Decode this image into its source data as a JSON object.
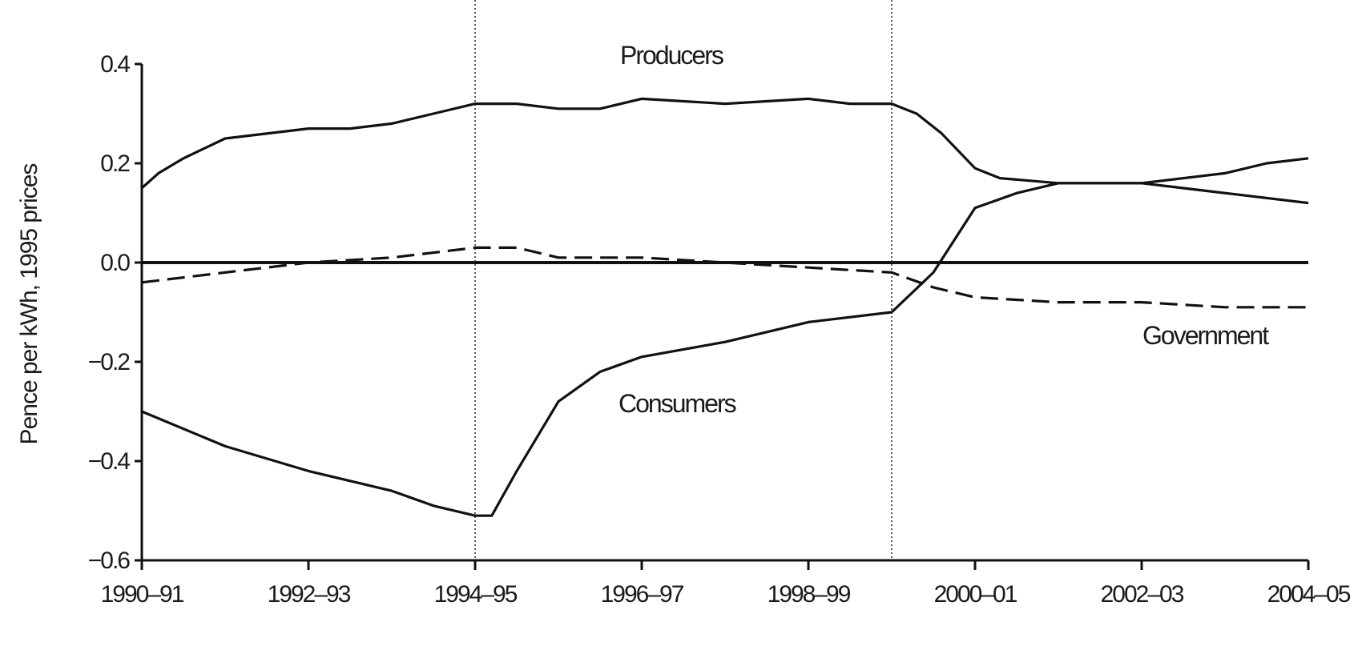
{
  "chart_data": {
    "type": "line",
    "title": "",
    "xlabel": "",
    "ylabel": "Pence per kWh, 1995 prices",
    "x_ticks": [
      "1990–91",
      "1992–93",
      "1994–95",
      "1996–97",
      "1998–99",
      "2000–01",
      "2002–03",
      "2004–05"
    ],
    "y_ticks": [
      "0.4",
      "0.2",
      "0.0",
      "−0.2",
      "−0.4",
      "−0.6"
    ],
    "xlim": [
      1990,
      2004
    ],
    "ylim": [
      -0.6,
      0.4
    ],
    "grid": false,
    "reference_lines": {
      "horizontal_y": 0,
      "vertical_dotted_x": [
        1994,
        1999
      ]
    },
    "series": [
      {
        "name": "Producers",
        "style": "solid",
        "x": [
          1990,
          1990.2,
          1990.5,
          1991,
          1992,
          1992.5,
          1993,
          1993.5,
          1994,
          1994.5,
          1995,
          1995.5,
          1996,
          1997,
          1998,
          1998.5,
          1999,
          1999.3,
          1999.6,
          2000,
          2000.3,
          2001,
          2002,
          2002.5,
          2003,
          2004
        ],
        "y": [
          0.15,
          0.18,
          0.21,
          0.25,
          0.27,
          0.27,
          0.28,
          0.3,
          0.32,
          0.32,
          0.31,
          0.31,
          0.33,
          0.32,
          0.33,
          0.32,
          0.32,
          0.3,
          0.26,
          0.19,
          0.17,
          0.16,
          0.16,
          0.15,
          0.14,
          0.12
        ]
      },
      {
        "name": "Consumers",
        "style": "solid",
        "x": [
          1990,
          1991,
          1992,
          1993,
          1993.5,
          1994,
          1994.2,
          1994.5,
          1995,
          1995.5,
          1996,
          1997,
          1998,
          1999,
          1999.5,
          2000,
          2000.5,
          2001,
          2002,
          2003,
          2003.5,
          2004
        ],
        "y": [
          -0.3,
          -0.37,
          -0.42,
          -0.46,
          -0.49,
          -0.51,
          -0.51,
          -0.42,
          -0.28,
          -0.22,
          -0.19,
          -0.16,
          -0.12,
          -0.1,
          -0.02,
          0.11,
          0.14,
          0.16,
          0.16,
          0.18,
          0.2,
          0.21
        ]
      },
      {
        "name": "Government",
        "style": "dashed",
        "x": [
          1990,
          1991,
          1991.5,
          1992,
          1993,
          1994,
          1994.5,
          1995,
          1996,
          1997,
          1998,
          1999,
          1999.5,
          2000,
          2001,
          2002,
          2003,
          2004
        ],
        "y": [
          -0.04,
          -0.02,
          -0.01,
          0,
          0.01,
          0.03,
          0.03,
          0.01,
          0.01,
          0.0,
          -0.01,
          -0.02,
          -0.05,
          -0.07,
          -0.08,
          -0.08,
          -0.09,
          -0.09
        ]
      }
    ]
  }
}
